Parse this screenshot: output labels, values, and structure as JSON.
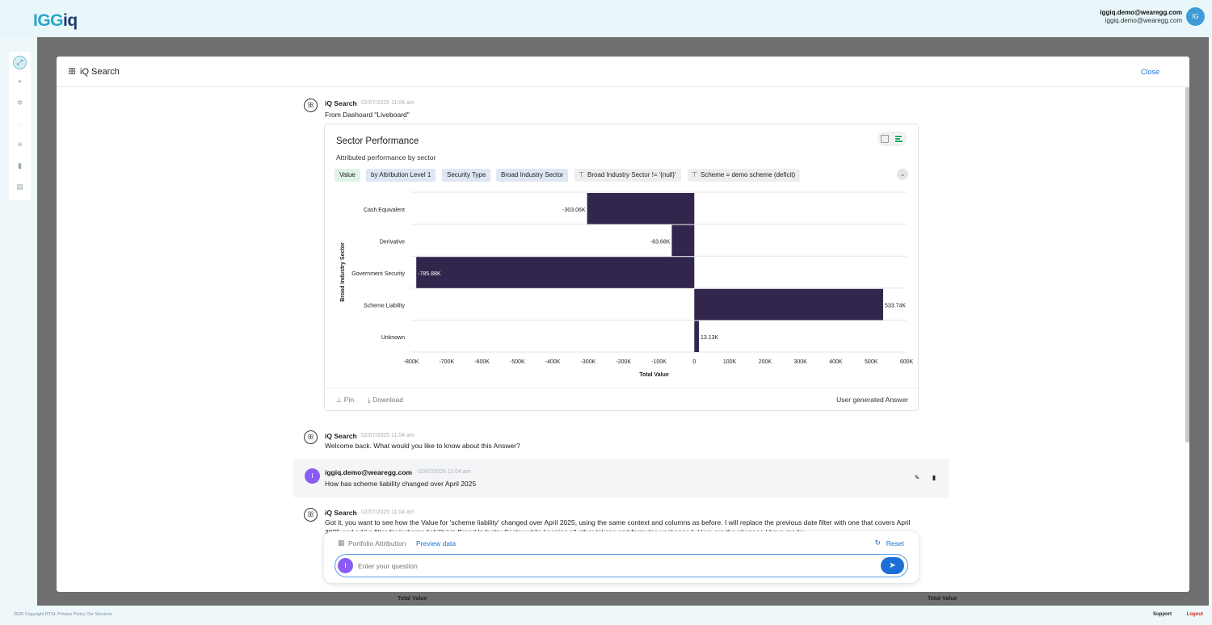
{
  "app": {
    "logo_part1": "IGG",
    "logo_part2": "iq"
  },
  "user": {
    "name": "iggiq.demo@wearegg.com",
    "email": "iggiq.demo@wearegg.com",
    "initials": "IG"
  },
  "rail": {
    "icons": [
      "collapse-icon",
      "target-icon",
      "settings-icon",
      "loading-icon",
      "network-icon",
      "book-icon",
      "report-icon"
    ]
  },
  "modal": {
    "title": "iQ Search",
    "close_label": "Close"
  },
  "messages": {
    "first": {
      "sender": "iQ Search",
      "timestamp": "02/07/2025 11:04 am",
      "text": "From Dashoard \"Liveboard\""
    },
    "second": {
      "sender": "iQ Search",
      "timestamp": "02/07/2025 11:04 am",
      "text": "Welcome back. What would you like to know about this Answer?"
    },
    "user_msg": {
      "initial": "I",
      "sender": "iggiq.demo@wearegg.com",
      "timestamp": "02/07/2025 11:04 am",
      "text": "How has scheme liability changed over April 2025"
    },
    "third": {
      "sender": "iQ Search",
      "timestamp": "02/07/2025 11:04 am",
      "text": "Got it, you want to see how the Value for 'scheme liability' changed over April 2025, using the same context and columns as before. I will replace the previous date filter with one that covers April 2025 and add a filter for 'scheme liability' in Broad Industry Sector while keeping all other tokens and formulas unchanged. Here are the changes I have made:"
    }
  },
  "card": {
    "title": "Sector Performance",
    "subtitle": "Attributed performance by sector",
    "chips": [
      {
        "label": "Value",
        "kind": "val"
      },
      {
        "label": "by Attribution Level 1",
        "kind": "attr"
      },
      {
        "label": "Security Type",
        "kind": "attr"
      },
      {
        "label": "Broad Industry Sector",
        "kind": "attr"
      },
      {
        "label": "Broad Industry Sector != '{null}'",
        "kind": "filt"
      },
      {
        "label": "Scheme = demo scheme (deficit)",
        "kind": "filt"
      }
    ],
    "pin_label": "Pin",
    "download_label": "Download",
    "footer_note": "User generated Answer"
  },
  "chart_data": {
    "type": "bar",
    "orientation": "horizontal",
    "categories": [
      "Cash Equivalent",
      "Derivative",
      "Government Security",
      "Scheme Liability",
      "Unknown"
    ],
    "values": [
      -303060,
      -63680,
      -785880,
      533740,
      13130
    ],
    "data_labels": [
      "-303.06K",
      "-63.68K",
      "-785.88K",
      "533.74K",
      "13.13K"
    ],
    "xlabel": "Total Value",
    "ylabel": "Broad Industry Sector",
    "xlim": [
      -800000,
      600000
    ],
    "x_ticks": [
      -800000,
      -700000,
      -600000,
      -500000,
      -400000,
      -300000,
      -200000,
      -100000,
      0,
      100000,
      200000,
      300000,
      400000,
      500000,
      600000
    ],
    "x_tick_labels": [
      "-800K",
      "-700K",
      "-600K",
      "-500K",
      "-400K",
      "-300K",
      "-200K",
      "-100K",
      "0",
      "100K",
      "200K",
      "300K",
      "400K",
      "500K",
      "600K"
    ],
    "bar_color": "#33264d",
    "grid": true
  },
  "input": {
    "source_label": "Portfolio Attribution",
    "preview_label": "Preview data",
    "reset_label": "Reset",
    "placeholder": "Enter your question",
    "avatar_initial": "I"
  },
  "behind": {
    "col1": "Total Value",
    "col2": "Total Value"
  },
  "footer": {
    "copyright": "2025 Copyright RTSL Privacy Policy Our Services",
    "support": "Support",
    "logout": "Logout"
  },
  "colors": {
    "accent": "#1d6fd8",
    "brand_teal": "#2aa6c8",
    "brand_navy": "#1d3b6e",
    "user_avatar": "#8a5cf5"
  }
}
